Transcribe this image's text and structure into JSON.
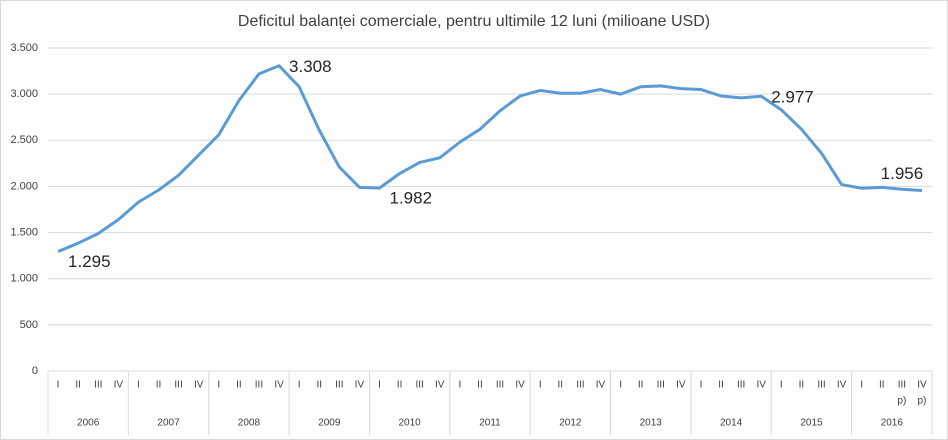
{
  "chart_data": {
    "type": "line",
    "title": "Deficitul balanței comerciale, pentru ultimile  12 luni (milioane USD)",
    "categories": [
      "I",
      "II",
      "III",
      "IV",
      "I",
      "II",
      "III",
      "IV",
      "I",
      "II",
      "III",
      "IV",
      "I",
      "II",
      "III",
      "IV",
      "I",
      "II",
      "III",
      "IV",
      "I",
      "II",
      "III",
      "IV",
      "I",
      "II",
      "III",
      "IV",
      "I",
      "II",
      "III",
      "IV",
      "I",
      "II",
      "III",
      "IV",
      "I",
      "II",
      "III",
      "IV",
      "I",
      "II",
      "III",
      "IV"
    ],
    "category_notes": [
      null,
      null,
      null,
      null,
      null,
      null,
      null,
      null,
      null,
      null,
      null,
      null,
      null,
      null,
      null,
      null,
      null,
      null,
      null,
      null,
      null,
      null,
      null,
      null,
      null,
      null,
      null,
      null,
      null,
      null,
      null,
      null,
      null,
      null,
      null,
      null,
      null,
      null,
      null,
      null,
      null,
      null,
      "p)",
      "p)"
    ],
    "years": [
      "2006",
      "2007",
      "2008",
      "2009",
      "2010",
      "2011",
      "2012",
      "2013",
      "2014",
      "2015",
      "2016"
    ],
    "series": [
      {
        "name": "Deficitul balanței comerciale",
        "color": "#5b9bd5",
        "values": [
          1295,
          1385,
          1490,
          1640,
          1830,
          1960,
          2120,
          2340,
          2560,
          2930,
          3220,
          3308,
          3080,
          2610,
          2210,
          1990,
          1982,
          2140,
          2260,
          2310,
          2480,
          2620,
          2820,
          2980,
          3040,
          3010,
          3010,
          3050,
          3000,
          3080,
          3090,
          3060,
          3050,
          2980,
          2960,
          2977,
          2830,
          2620,
          2360,
          2020,
          1980,
          1990,
          1970,
          1956
        ],
        "value_labels": [
          "1.295",
          null,
          null,
          null,
          null,
          null,
          null,
          null,
          null,
          null,
          null,
          "3.308",
          null,
          null,
          null,
          null,
          "1.982",
          null,
          null,
          null,
          null,
          null,
          null,
          null,
          null,
          null,
          null,
          null,
          null,
          null,
          null,
          null,
          null,
          null,
          null,
          "2.977",
          null,
          null,
          null,
          null,
          null,
          null,
          null,
          "1.956"
        ]
      }
    ],
    "ylim": [
      0,
      3500
    ],
    "yticks": [
      0,
      {
        "value": 500,
        "label": "500"
      },
      {
        "value": 1000,
        "label": "1.000"
      },
      {
        "value": 1500,
        "label": "1.500"
      },
      {
        "value": 2000,
        "label": "2.000"
      },
      {
        "value": 2500,
        "label": "2.500"
      },
      {
        "value": 3000,
        "label": "3.000"
      },
      {
        "value": 3500,
        "label": "3.500"
      }
    ],
    "grid": true
  }
}
